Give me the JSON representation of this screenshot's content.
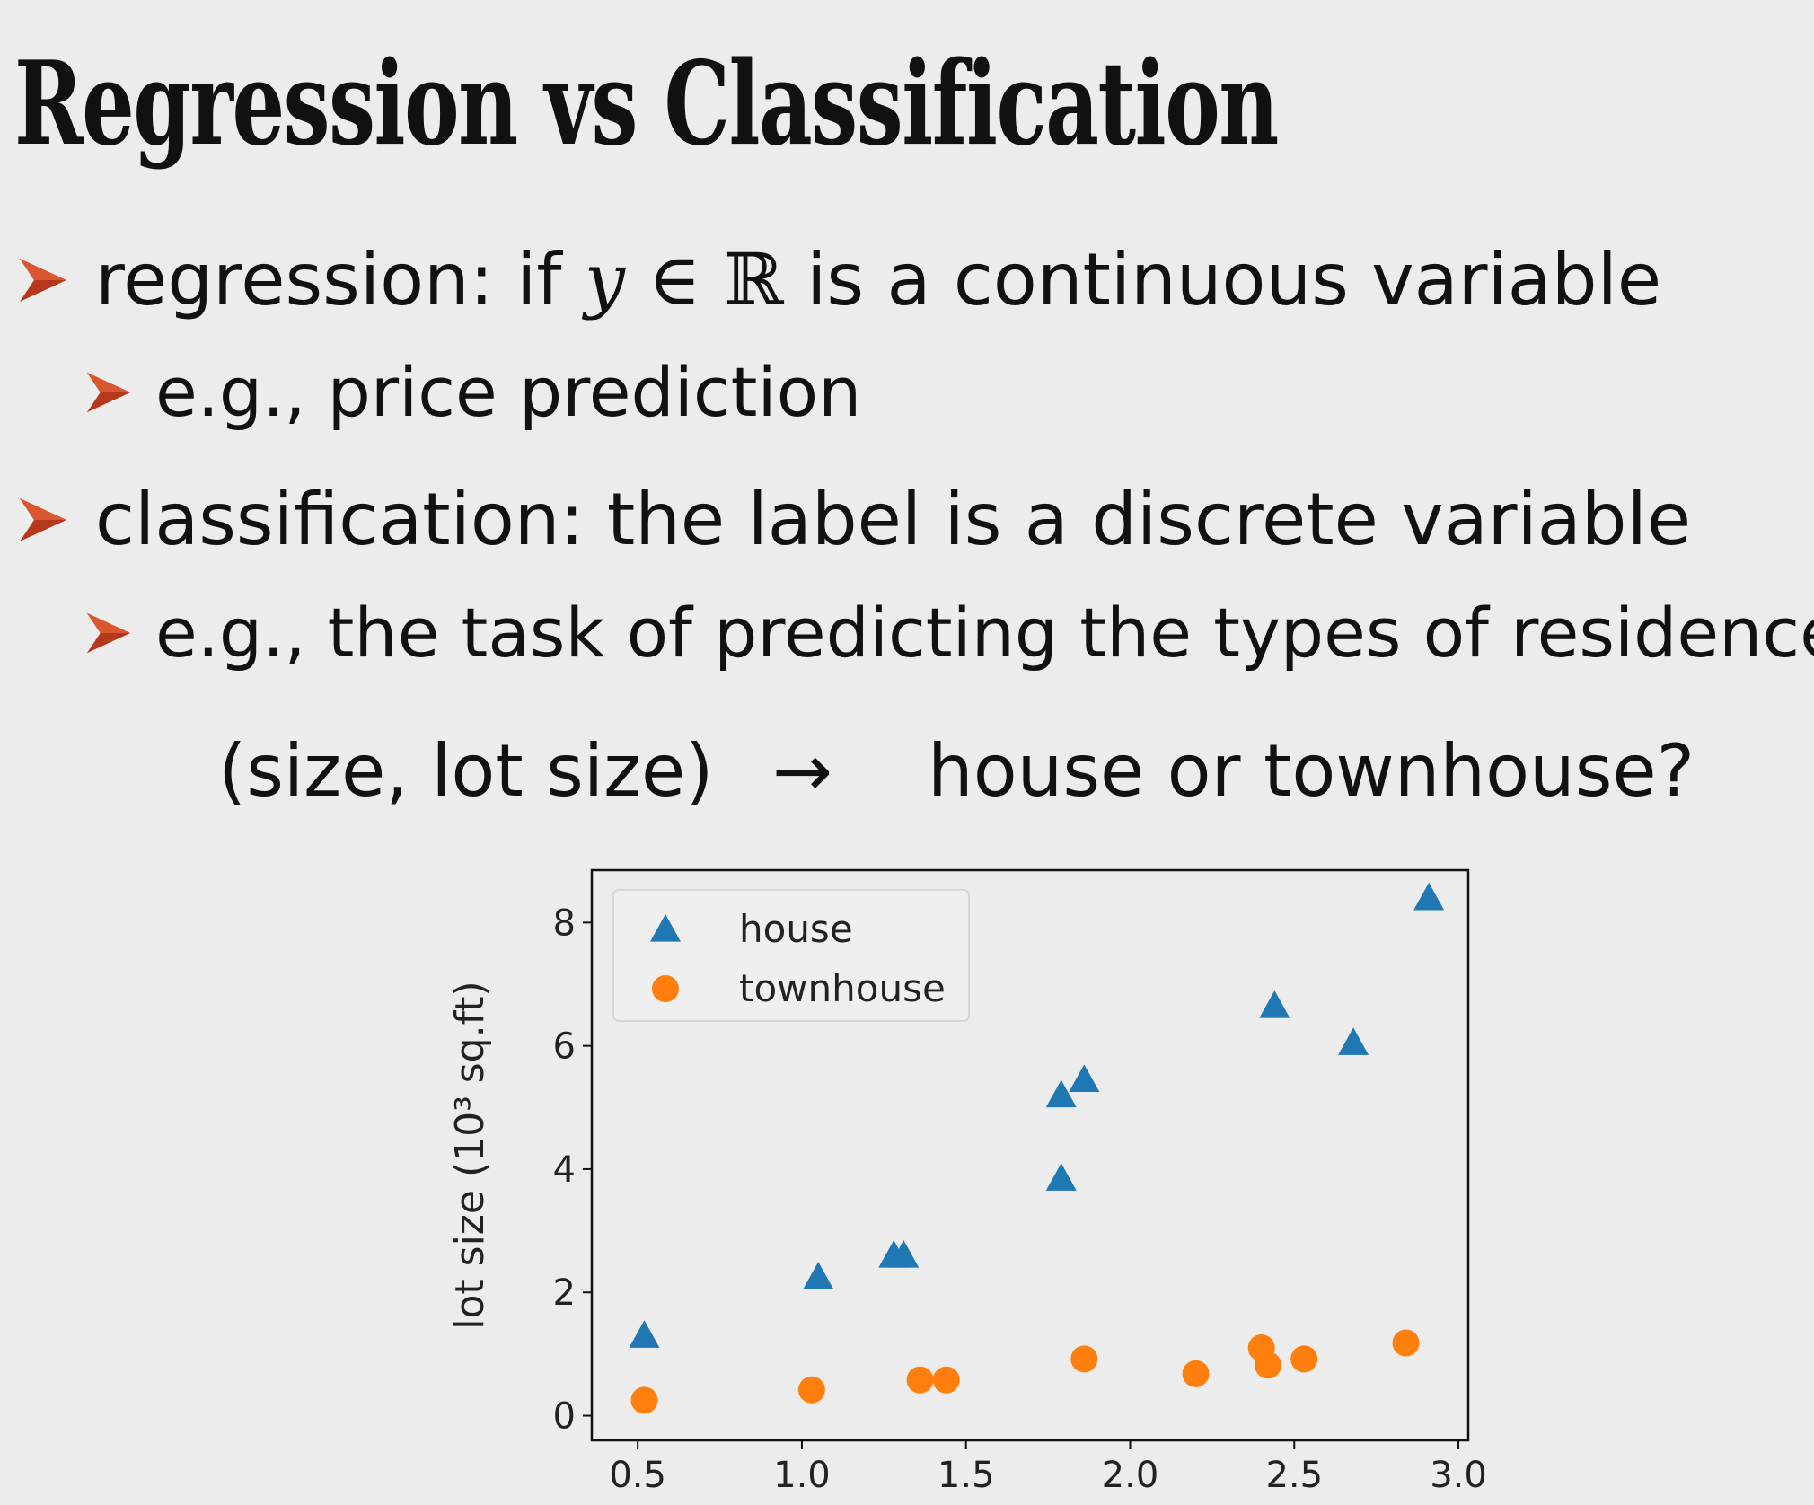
{
  "slide": {
    "title": "Regression vs Classification",
    "bullets": [
      {
        "prefix": "regression: if ",
        "var": "y",
        "member": " ∈ ",
        "set": "ℝ",
        "suffix": " is a continuous variable"
      },
      {
        "text": "e.g., price prediction"
      },
      {
        "text": "classification: the label is a discrete variable"
      },
      {
        "text": "e.g., the task of predicting the types of residence"
      }
    ],
    "mapping": {
      "input": "(size, lot size)",
      "arrow": "→",
      "output": "house or townhouse?"
    },
    "accent_color": "#b5371c"
  },
  "chart_data": {
    "type": "scatter",
    "xlabel": "",
    "ylabel": "lot size (10³ sq.ft)",
    "xlim": [
      0.36,
      3.03
    ],
    "ylim": [
      -0.4,
      8.85
    ],
    "xticks": [
      "0.5",
      "1.0",
      "1.5",
      "2.0",
      "2.5",
      "3.0"
    ],
    "yticks": [
      "0",
      "2",
      "4",
      "6",
      "8"
    ],
    "legend_position": "top-left",
    "series": [
      {
        "name": "house",
        "marker": "triangle",
        "color": "#1f77b4",
        "points": [
          [
            0.52,
            1.3
          ],
          [
            1.05,
            2.25
          ],
          [
            1.28,
            2.6
          ],
          [
            1.31,
            2.6
          ],
          [
            1.79,
            3.85
          ],
          [
            1.79,
            5.2
          ],
          [
            1.86,
            5.45
          ],
          [
            2.44,
            6.65
          ],
          [
            2.68,
            6.05
          ],
          [
            2.91,
            8.4
          ]
        ]
      },
      {
        "name": "townhouse",
        "marker": "circle",
        "color": "#ff7f0e",
        "points": [
          [
            0.52,
            0.25
          ],
          [
            1.03,
            0.42
          ],
          [
            1.36,
            0.58
          ],
          [
            1.44,
            0.58
          ],
          [
            1.86,
            0.92
          ],
          [
            2.2,
            0.68
          ],
          [
            2.4,
            1.1
          ],
          [
            2.42,
            0.82
          ],
          [
            2.53,
            0.92
          ],
          [
            2.84,
            1.18
          ]
        ]
      }
    ]
  }
}
